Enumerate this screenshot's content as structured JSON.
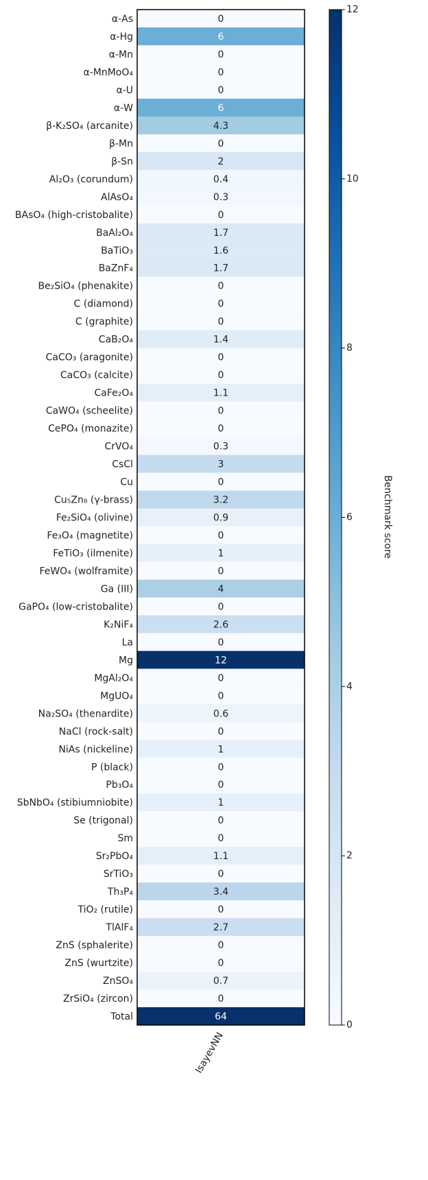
{
  "chart_data": {
    "type": "heatmap",
    "categories": [
      "α-As",
      "α-Hg",
      "α-Mn",
      "α-MnMoO₄",
      "α-U",
      "α-W",
      "β-K₂SO₄ (arcanite)",
      "β-Mn",
      "β-Sn",
      "Al₂O₃ (corundum)",
      "AlAsO₄",
      "BAsO₄ (high-cristobalite)",
      "BaAl₂O₄",
      "BaTiO₃",
      "BaZnF₄",
      "Be₂SiO₄ (phenakite)",
      "C (diamond)",
      "C (graphite)",
      "CaB₂O₄",
      "CaCO₃ (aragonite)",
      "CaCO₃ (calcite)",
      "CaFe₂O₄",
      "CaWO₄ (scheelite)",
      "CePO₄ (monazite)",
      "CrVO₄",
      "CsCl",
      "Cu",
      "Cu₅Zn₈ (γ-brass)",
      "Fe₂SiO₄ (olivine)",
      "Fe₃O₄ (magnetite)",
      "FeTiO₃ (ilmenite)",
      "FeWO₄ (wolframite)",
      "Ga (III)",
      "GaPO₄ (low-cristobalite)",
      "K₂NiF₄",
      "La",
      "Mg",
      "MgAl₂O₄",
      "MgUO₄",
      "Na₂SO₄ (thenardite)",
      "NaCl (rock-salt)",
      "NiAs (nickeline)",
      "P (black)",
      "Pb₃O₄",
      "SbNbO₄ (stibiumniobite)",
      "Se (trigonal)",
      "Sm",
      "Sr₂PbO₄",
      "SrTiO₃",
      "Th₃P₄",
      "TiO₂ (rutile)",
      "TlAlF₄",
      "ZnS (sphalerite)",
      "ZnS (wurtzite)",
      "ZnSO₄",
      "ZrSiO₄ (zircon)",
      "Total"
    ],
    "series": [
      {
        "name": "IsayevNN",
        "values": [
          0,
          6,
          0,
          0,
          0,
          6,
          4.3,
          0,
          2,
          0.4,
          0.3,
          0,
          1.7,
          1.6,
          1.7,
          0,
          0,
          0,
          1.4,
          0,
          0,
          1.1,
          0,
          0,
          0.3,
          3,
          0,
          3.2,
          0.9,
          0,
          1,
          0,
          4,
          0,
          2.6,
          0,
          12,
          0,
          0,
          0.6,
          0,
          1,
          0,
          0,
          1,
          0,
          0,
          1.1,
          0,
          3.4,
          0,
          2.7,
          0,
          0,
          0.7,
          0,
          64
        ]
      }
    ],
    "colorscale": [
      "#f7fbff",
      "#deebf7",
      "#c6dbef",
      "#9ecae1",
      "#6baed6",
      "#4292c6",
      "#2171b5",
      "#08519c",
      "#08306b"
    ],
    "clim": [
      0,
      12
    ],
    "cticks": [
      0,
      2,
      4,
      6,
      8,
      10,
      12
    ],
    "colorbar_label": "Benchmark score"
  }
}
